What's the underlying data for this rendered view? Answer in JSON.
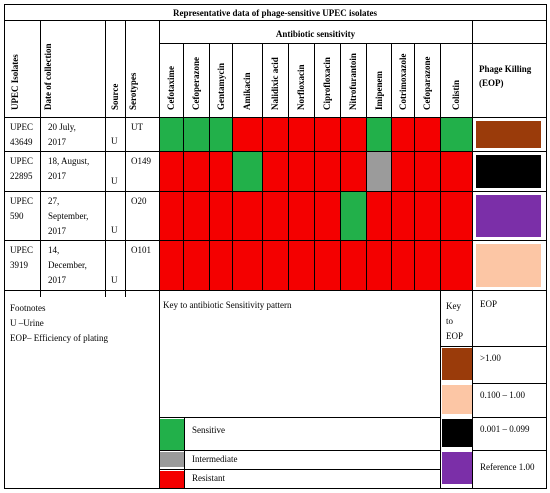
{
  "title": "Representative data of phage-sensitive UPEC isolates",
  "headers": {
    "isolates": "UPEC Isolates",
    "date": "Date of collection",
    "source": "Source",
    "serotypes": "Serotypes",
    "antibiotic_group": "Antibiotic sensitivity",
    "antibiotics": [
      "Cefotaxime",
      "Cefoperazone",
      "Gentamycin",
      "Amikacin",
      "Nalidixic acid",
      "Norfloxacin",
      "Ciprofloxacin",
      "Nitrofurantoin",
      "Imipenem",
      "Cotrimoxazole",
      "Cefoparazone",
      "Colistin"
    ],
    "phage_killing": "Phage Killing (EOP)"
  },
  "rows": [
    {
      "isolate": [
        "UPEC",
        "43649"
      ],
      "date": [
        "20     July,",
        "2017"
      ],
      "source": "U",
      "serotype": "UT",
      "pattern": [
        "S",
        "S",
        "S",
        "R",
        "R",
        "R",
        "R",
        "R",
        "S",
        "R",
        "R",
        "S"
      ],
      "eop": ">1.00"
    },
    {
      "isolate": [
        "UPEC",
        "22895"
      ],
      "date": [
        "18, August,",
        "2017"
      ],
      "source": "U",
      "serotype": "O149",
      "pattern": [
        "R",
        "R",
        "R",
        "S",
        "R",
        "R",
        "R",
        "R",
        "I",
        "R",
        "R",
        "R"
      ],
      "eop": "0.001 – 0.099"
    },
    {
      "isolate": [
        "UPEC",
        "590"
      ],
      "date": [
        "27,",
        "September,",
        "2017"
      ],
      "source": "U",
      "serotype": "O20",
      "pattern": [
        "R",
        "R",
        "R",
        "R",
        "R",
        "R",
        "R",
        "S",
        "R",
        "R",
        "R",
        "R"
      ],
      "eop": "Reference 1.00"
    },
    {
      "isolate": [
        "UPEC",
        "3919"
      ],
      "date": [
        "14,",
        "December,",
        "2017"
      ],
      "source": "U",
      "serotype": "O101",
      "pattern": [
        "R",
        "R",
        "R",
        "R",
        "R",
        "R",
        "R",
        "R",
        "R",
        "R",
        "R",
        "R"
      ],
      "eop": "0.100 – 1.00"
    }
  ],
  "footnotes": {
    "title": "Footnotes",
    "lines": [
      "U –Urine",
      "EOP– Efficiency of plating"
    ]
  },
  "antibiotic_key": {
    "title": "Key   to   antibiotic   Sensitivity pattern",
    "items": [
      {
        "code": "S",
        "label": "Sensitive"
      },
      {
        "code": "I",
        "label": "Intermediate"
      },
      {
        "code": "R",
        "label": "Resistant"
      }
    ]
  },
  "eop_key": {
    "title_lines": [
      "Key",
      "to",
      "EOP"
    ],
    "header": "EOP",
    "items": [
      {
        "label": ">1.00"
      },
      {
        "label": "0.100 – 1.00"
      },
      {
        "label": "0.001 – 0.099"
      },
      {
        "label": "Reference 1.00"
      }
    ]
  },
  "colors": {
    "S": "#22b04a",
    "R": "#f40000",
    "I": "#9b9b9b",
    ">1.00": "#9a3b0a",
    "0.100 – 1.00": "#fcc6a5",
    "0.001 – 0.099": "#000000",
    "Reference 1.00": "#7b2fa8"
  }
}
